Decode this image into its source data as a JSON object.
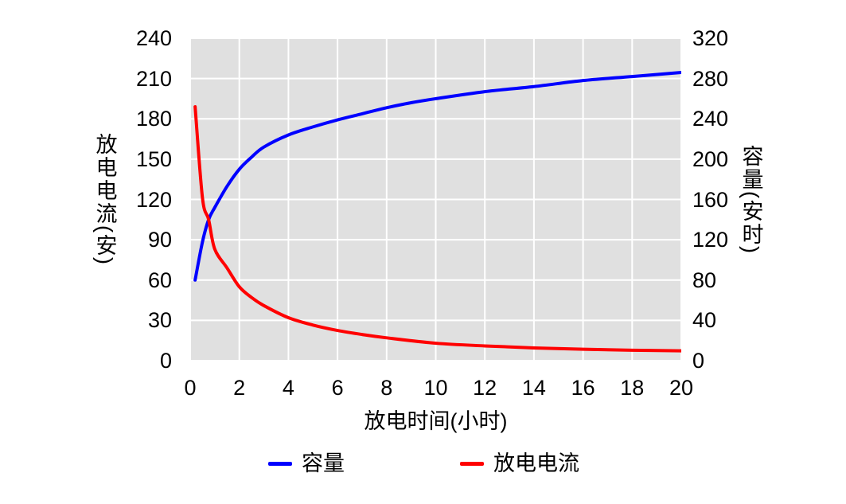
{
  "colors": {
    "panel_background": "#E0E0E0",
    "grid": "#FFFFFF",
    "text": "#000000",
    "capacity_line": "#0000FF",
    "current_line": "#FF0000"
  },
  "chart_data": {
    "type": "line",
    "grid": true,
    "legend_position": "bottom",
    "x_axis": {
      "label": "放电时间(小时)",
      "range": [
        0,
        20
      ],
      "ticks": [
        0,
        2,
        4,
        6,
        8,
        10,
        12,
        14,
        16,
        18,
        20
      ]
    },
    "y_axis_left": {
      "label": "放电电流(安)",
      "range": [
        0,
        240
      ],
      "ticks": [
        0,
        30,
        60,
        90,
        120,
        150,
        180,
        210,
        240
      ]
    },
    "y_axis_right": {
      "label": "容量(安时)",
      "range": [
        0,
        320
      ],
      "ticks": [
        0,
        40,
        80,
        120,
        160,
        200,
        240,
        280,
        320
      ]
    },
    "series": [
      {
        "name": "容量",
        "axis": "right",
        "color": "#0000FF",
        "x": [
          0.2,
          0.5,
          0.75,
          1,
          1.5,
          2,
          2.5,
          3,
          4,
          5,
          6,
          7,
          8,
          9,
          10,
          12,
          14,
          16,
          18,
          20
        ],
        "values": [
          80,
          118,
          140,
          152,
          173,
          190,
          202,
          212,
          224,
          232,
          239,
          245,
          251,
          256,
          260,
          267,
          272,
          278,
          282,
          286
        ]
      },
      {
        "name": "放电电流",
        "axis": "left",
        "color": "#FF0000",
        "x": [
          0.2,
          0.5,
          0.75,
          1,
          1.5,
          2,
          2.5,
          3,
          4,
          5,
          6,
          7,
          8,
          10,
          12,
          14,
          16,
          18,
          20
        ],
        "values": [
          189,
          121,
          105,
          83,
          69,
          55,
          47,
          41,
          32,
          26.5,
          22.5,
          19.5,
          17,
          13,
          11,
          9.5,
          8.5,
          7.8,
          7.3
        ]
      }
    ]
  },
  "legend": {
    "capacity_label": "容量",
    "current_label": "放电电流"
  }
}
